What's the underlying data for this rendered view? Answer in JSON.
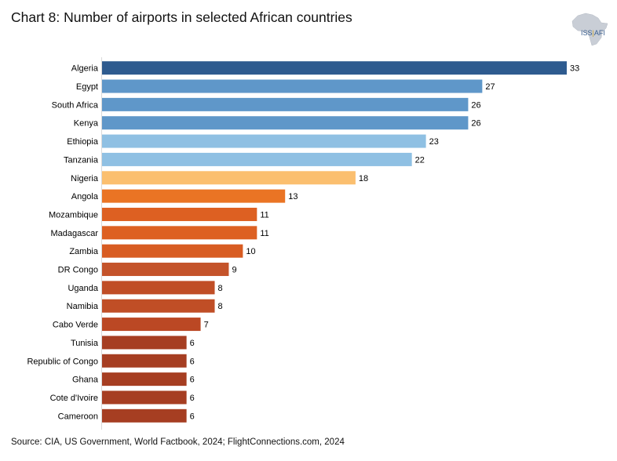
{
  "title": "Chart 8: Number of airports in selected African countries",
  "logo": {
    "left": "ISS",
    "right": "AFI"
  },
  "source": "Source: CIA, US Government, World Factbook, 2024; FlightConnections.com, 2024",
  "chart_data": {
    "type": "bar",
    "orientation": "horizontal",
    "title": "Chart 8: Number of airports in selected African countries",
    "xlabel": "",
    "ylabel": "",
    "xlim": [
      0,
      33
    ],
    "grid": false,
    "legend": "none",
    "categories": [
      "Algeria",
      "Egypt",
      "South Africa",
      "Kenya",
      "Ethiopia",
      "Tanzania",
      "Nigeria",
      "Angola",
      "Mozambique",
      "Madagascar",
      "Zambia",
      "DR Congo",
      "Uganda",
      "Namibia",
      "Cabo Verde",
      "Tunisia",
      "Republic of Congo",
      "Ghana",
      "Cote d'Ivoire",
      "Cameroon"
    ],
    "values": [
      33,
      27,
      26,
      26,
      23,
      22,
      18,
      13,
      11,
      11,
      10,
      9,
      8,
      8,
      7,
      6,
      6,
      6,
      6,
      6
    ],
    "colors": [
      "#2e5b8f",
      "#5f97c9",
      "#5f97c9",
      "#5f97c9",
      "#8fc0e3",
      "#8fc0e3",
      "#fbbf6f",
      "#ea7424",
      "#dd6022",
      "#dd6022",
      "#d85c22",
      "#c4532a",
      "#c04e26",
      "#c04e26",
      "#bb4824",
      "#a63e22",
      "#a63e22",
      "#a63e22",
      "#a63e22",
      "#a63e22"
    ]
  }
}
